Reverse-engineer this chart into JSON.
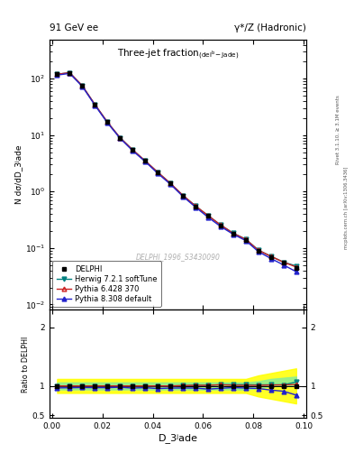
{
  "title_top_left": "91 GeV ee",
  "title_top_right": "γ*/Z (Hadronic)",
  "plot_title": "Three-jet fraction₍ᵈᵉᵇ₎-Jade)",
  "plot_title2": "Three-jet fraction(delᵇ-Jade)",
  "xlabel": "D_3ʲade",
  "ylabel_main": "N dσ/dD_3ʲade",
  "ylabel_ratio": "Ratio to DELPHI",
  "right_label": "Rivet 3.1.10, ≥ 3.1M events",
  "right_label2": "mcplots.cern.ch [arXiv:1306.3436]",
  "watermark": "DELPHI_1996_S3430090",
  "data_x": [
    0.002,
    0.007,
    0.012,
    0.017,
    0.022,
    0.027,
    0.032,
    0.037,
    0.042,
    0.047,
    0.052,
    0.057,
    0.062,
    0.067,
    0.072,
    0.077,
    0.082,
    0.087,
    0.092,
    0.097
  ],
  "data_y_delphi": [
    120,
    128,
    75,
    35,
    17,
    9,
    5.5,
    3.5,
    2.2,
    1.4,
    0.85,
    0.55,
    0.37,
    0.25,
    0.18,
    0.14,
    0.09,
    0.07,
    0.055,
    0.045
  ],
  "data_y_herwig": [
    120,
    128,
    75,
    35,
    17,
    9,
    5.5,
    3.5,
    2.2,
    1.4,
    0.855,
    0.555,
    0.375,
    0.255,
    0.183,
    0.143,
    0.0915,
    0.0713,
    0.056,
    0.048
  ],
  "data_y_pythia6": [
    120,
    128,
    75,
    35,
    17,
    9,
    5.5,
    3.5,
    2.2,
    1.4,
    0.855,
    0.555,
    0.375,
    0.255,
    0.182,
    0.142,
    0.091,
    0.071,
    0.056,
    0.046
  ],
  "data_y_pythia8": [
    116,
    124,
    73,
    34,
    16.5,
    8.8,
    5.3,
    3.4,
    2.1,
    1.35,
    0.82,
    0.53,
    0.35,
    0.24,
    0.175,
    0.135,
    0.086,
    0.065,
    0.05,
    0.038
  ],
  "ratio_herwig": [
    1.0,
    1.0,
    1.0,
    1.0,
    1.0,
    1.0,
    1.0,
    1.0,
    1.0,
    1.0,
    1.005,
    1.01,
    1.01,
    1.02,
    1.02,
    1.02,
    1.017,
    1.02,
    1.018,
    1.067
  ],
  "ratio_pythia6": [
    1.0,
    1.0,
    1.0,
    1.0,
    1.0,
    1.0,
    1.0,
    1.0,
    1.0,
    1.0,
    1.005,
    1.01,
    1.01,
    1.02,
    1.01,
    1.01,
    1.01,
    1.014,
    1.018,
    1.022
  ],
  "ratio_pythia8": [
    0.967,
    0.969,
    0.973,
    0.971,
    0.971,
    0.978,
    0.964,
    0.971,
    0.955,
    0.964,
    0.965,
    0.964,
    0.946,
    0.96,
    0.972,
    0.964,
    0.956,
    0.929,
    0.909,
    0.844
  ],
  "band_yellow_lo": [
    0.88,
    0.88,
    0.88,
    0.88,
    0.88,
    0.88,
    0.88,
    0.88,
    0.88,
    0.88,
    0.88,
    0.88,
    0.88,
    0.88,
    0.88,
    0.88,
    0.82,
    0.78,
    0.74,
    0.7
  ],
  "band_yellow_hi": [
    1.12,
    1.12,
    1.12,
    1.12,
    1.12,
    1.12,
    1.12,
    1.12,
    1.12,
    1.12,
    1.12,
    1.12,
    1.12,
    1.12,
    1.12,
    1.12,
    1.18,
    1.22,
    1.26,
    1.3
  ],
  "band_green_lo": [
    0.94,
    0.94,
    0.94,
    0.94,
    0.94,
    0.94,
    0.94,
    0.94,
    0.94,
    0.94,
    0.94,
    0.94,
    0.94,
    0.94,
    0.94,
    0.94,
    0.965,
    0.99,
    1.005,
    1.005
  ],
  "band_green_hi": [
    1.06,
    1.06,
    1.06,
    1.06,
    1.06,
    1.06,
    1.06,
    1.06,
    1.06,
    1.06,
    1.06,
    1.06,
    1.06,
    1.06,
    1.06,
    1.06,
    1.08,
    1.12,
    1.14,
    1.16
  ],
  "color_delphi": "#000000",
  "color_herwig": "#008080",
  "color_pythia6": "#cc2222",
  "color_pythia8": "#2222cc",
  "ylim_main": [
    0.008,
    500
  ],
  "ylim_ratio": [
    0.45,
    2.3
  ],
  "xlim": [
    -0.001,
    0.101
  ]
}
